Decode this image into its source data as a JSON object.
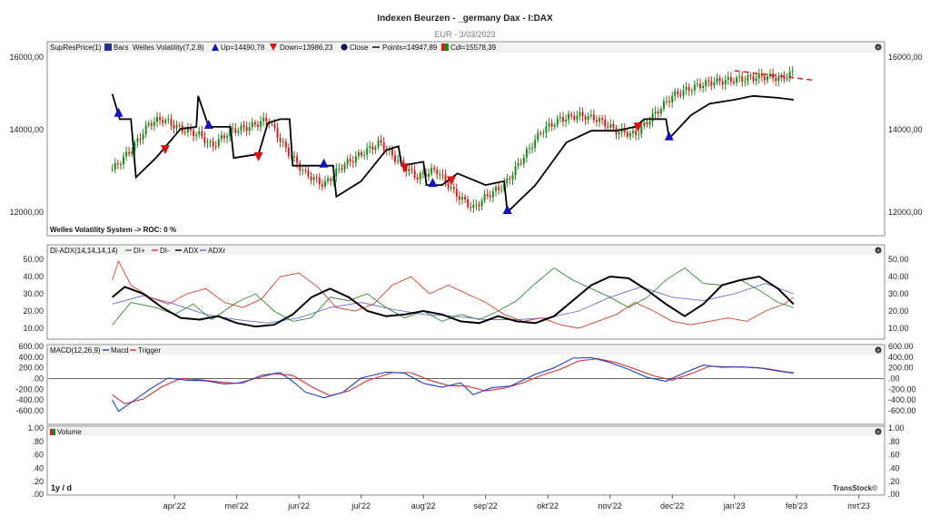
{
  "header": {
    "title": "Indexen Beurzen - _germany Dax - I:DAX",
    "subtitle": "EUR - 3/03/2023"
  },
  "panels": {
    "price": {
      "legend": [
        "SupResPrice(1)",
        "Bars",
        "Welles Volatility(7,2.8)",
        "Up=14490,78",
        "Down=13986,23",
        "Close",
        "Points=14947,89",
        "Cdl=15578,39"
      ],
      "note": "Welles Volatility System -> ROC: 0 %",
      "yticks": [
        "16000,00",
        "14000,00",
        "12000,00"
      ]
    },
    "adx": {
      "legend": [
        "DI-ADX(14,14,14,14)",
        "DI+",
        "DI-",
        "ADX",
        "ADXr"
      ],
      "yticks": [
        "50.00",
        "40.00",
        "30.00",
        "20.00",
        "10.00"
      ]
    },
    "macd": {
      "legend": [
        "MACD(12,26,9)",
        "Macd",
        "Trigger"
      ],
      "yticks": [
        "600.00",
        "400.00",
        "200.00",
        ".00",
        "-200.00",
        "-400.00",
        "-600.00"
      ]
    },
    "volume": {
      "legend": [
        "Volume"
      ],
      "yticks": [
        "1.00",
        ".80",
        ".60",
        ".40",
        ".20",
        ".00"
      ],
      "period": "1y / d",
      "brand": "TransStock©"
    }
  },
  "colors": {
    "up_bar": "#1a8a1a",
    "down_bar": "#d42020",
    "volatility_line": "#000000",
    "up_marker": "#1010c0",
    "down_marker": "#dd1010",
    "di_plus": "#2e8b2e",
    "di_minus": "#e03a2a",
    "adx": "#000000",
    "adxr": "#6a6ae0",
    "macd": "#2040d0",
    "trigger": "#e03030",
    "trend_dash": "#e02020"
  },
  "chart_data": {
    "type": "line",
    "x_months": [
      "apr'22",
      "mei'22",
      "jun'22",
      "jul'22",
      "aug'22",
      "sep'22",
      "okt'22",
      "nov'22",
      "dec'22",
      "jan'23",
      "feb'23",
      "mrt'23"
    ],
    "price_close": [
      {
        "m": 0.0,
        "v": 13100
      },
      {
        "m": 0.3,
        "v": 13600
      },
      {
        "m": 0.6,
        "v": 14300
      },
      {
        "m": 0.8,
        "v": 14400
      },
      {
        "m": 1.1,
        "v": 14150
      },
      {
        "m": 1.4,
        "v": 14000
      },
      {
        "m": 1.6,
        "v": 13700
      },
      {
        "m": 1.9,
        "v": 14100
      },
      {
        "m": 2.2,
        "v": 14200
      },
      {
        "m": 2.5,
        "v": 14400
      },
      {
        "m": 2.8,
        "v": 13600
      },
      {
        "m": 3.1,
        "v": 13000
      },
      {
        "m": 3.4,
        "v": 12700
      },
      {
        "m": 3.7,
        "v": 13200
      },
      {
        "m": 4.0,
        "v": 13500
      },
      {
        "m": 4.3,
        "v": 13800
      },
      {
        "m": 4.6,
        "v": 13300
      },
      {
        "m": 4.9,
        "v": 12900
      },
      {
        "m": 5.2,
        "v": 13100
      },
      {
        "m": 5.5,
        "v": 12500
      },
      {
        "m": 5.8,
        "v": 12100
      },
      {
        "m": 6.0,
        "v": 12400
      },
      {
        "m": 6.3,
        "v": 12700
      },
      {
        "m": 6.6,
        "v": 13400
      },
      {
        "m": 6.9,
        "v": 14100
      },
      {
        "m": 7.2,
        "v": 14400
      },
      {
        "m": 7.5,
        "v": 14500
      },
      {
        "m": 7.8,
        "v": 14400
      },
      {
        "m": 8.1,
        "v": 14100
      },
      {
        "m": 8.4,
        "v": 14000
      },
      {
        "m": 8.7,
        "v": 14500
      },
      {
        "m": 9.0,
        "v": 15000
      },
      {
        "m": 9.3,
        "v": 15200
      },
      {
        "m": 9.6,
        "v": 15350
      },
      {
        "m": 9.9,
        "v": 15400
      },
      {
        "m": 10.2,
        "v": 15450
      },
      {
        "m": 10.5,
        "v": 15500
      },
      {
        "m": 10.75,
        "v": 15450
      },
      {
        "m": 10.95,
        "v": 15600
      }
    ],
    "welles_volatility": [
      {
        "m": 0.0,
        "v": 15050
      },
      {
        "m": 0.12,
        "v": 14400
      },
      {
        "m": 0.3,
        "v": 14400
      },
      {
        "m": 0.38,
        "v": 12900
      },
      {
        "m": 0.7,
        "v": 13400
      },
      {
        "m": 1.1,
        "v": 14150
      },
      {
        "m": 1.35,
        "v": 14200
      },
      {
        "m": 1.38,
        "v": 15000
      },
      {
        "m": 1.55,
        "v": 14200
      },
      {
        "m": 1.9,
        "v": 14200
      },
      {
        "m": 1.95,
        "v": 13400
      },
      {
        "m": 2.35,
        "v": 13500
      },
      {
        "m": 2.5,
        "v": 14300
      },
      {
        "m": 2.7,
        "v": 14400
      },
      {
        "m": 2.85,
        "v": 14400
      },
      {
        "m": 2.9,
        "v": 13200
      },
      {
        "m": 3.4,
        "v": 13200
      },
      {
        "m": 3.55,
        "v": 13200
      },
      {
        "m": 3.6,
        "v": 12400
      },
      {
        "m": 4.0,
        "v": 12800
      },
      {
        "m": 4.4,
        "v": 13600
      },
      {
        "m": 4.6,
        "v": 13700
      },
      {
        "m": 4.65,
        "v": 13200
      },
      {
        "m": 5.0,
        "v": 13300
      },
      {
        "m": 5.05,
        "v": 12700
      },
      {
        "m": 5.3,
        "v": 12700
      },
      {
        "m": 5.55,
        "v": 13000
      },
      {
        "m": 6.0,
        "v": 12700
      },
      {
        "m": 6.3,
        "v": 12800
      },
      {
        "m": 6.35,
        "v": 12000
      },
      {
        "m": 6.8,
        "v": 12700
      },
      {
        "m": 7.3,
        "v": 13800
      },
      {
        "m": 7.7,
        "v": 14100
      },
      {
        "m": 8.1,
        "v": 14100
      },
      {
        "m": 8.4,
        "v": 14200
      },
      {
        "m": 8.55,
        "v": 14400
      },
      {
        "m": 8.9,
        "v": 14400
      },
      {
        "m": 8.95,
        "v": 13900
      },
      {
        "m": 9.3,
        "v": 14500
      },
      {
        "m": 9.6,
        "v": 14800
      },
      {
        "m": 10.0,
        "v": 14900
      },
      {
        "m": 10.3,
        "v": 15000
      },
      {
        "m": 10.7,
        "v": 14950
      },
      {
        "m": 10.95,
        "v": 14900
      }
    ],
    "up_markers": [
      0.1,
      1.55,
      3.4,
      5.15,
      6.35,
      8.95
    ],
    "down_markers": [
      0.85,
      2.35,
      4.7,
      5.45,
      8.45
    ],
    "trend_line": {
      "from": {
        "m": 10.0,
        "v": 15650
      },
      "to": {
        "m": 11.3,
        "v": 15400
      }
    },
    "di_plus": [
      {
        "m": 0.0,
        "v": 12
      },
      {
        "m": 0.3,
        "v": 25
      },
      {
        "m": 0.7,
        "v": 22
      },
      {
        "m": 1.0,
        "v": 18
      },
      {
        "m": 1.3,
        "v": 24
      },
      {
        "m": 1.6,
        "v": 15
      },
      {
        "m": 2.0,
        "v": 25
      },
      {
        "m": 2.3,
        "v": 30
      },
      {
        "m": 2.6,
        "v": 20
      },
      {
        "m": 2.9,
        "v": 14
      },
      {
        "m": 3.2,
        "v": 16
      },
      {
        "m": 3.5,
        "v": 28
      },
      {
        "m": 3.8,
        "v": 26
      },
      {
        "m": 4.1,
        "v": 30
      },
      {
        "m": 4.4,
        "v": 22
      },
      {
        "m": 4.7,
        "v": 16
      },
      {
        "m": 5.0,
        "v": 20
      },
      {
        "m": 5.3,
        "v": 14
      },
      {
        "m": 5.6,
        "v": 18
      },
      {
        "m": 5.9,
        "v": 15
      },
      {
        "m": 6.2,
        "v": 20
      },
      {
        "m": 6.5,
        "v": 26
      },
      {
        "m": 6.8,
        "v": 36
      },
      {
        "m": 7.1,
        "v": 45
      },
      {
        "m": 7.4,
        "v": 38
      },
      {
        "m": 7.7,
        "v": 33
      },
      {
        "m": 8.0,
        "v": 28
      },
      {
        "m": 8.3,
        "v": 22
      },
      {
        "m": 8.6,
        "v": 28
      },
      {
        "m": 8.9,
        "v": 38
      },
      {
        "m": 9.2,
        "v": 45
      },
      {
        "m": 9.5,
        "v": 36
      },
      {
        "m": 9.8,
        "v": 35
      },
      {
        "m": 10.1,
        "v": 38
      },
      {
        "m": 10.4,
        "v": 32
      },
      {
        "m": 10.7,
        "v": 25
      },
      {
        "m": 10.95,
        "v": 22
      }
    ],
    "di_minus": [
      {
        "m": 0.0,
        "v": 38
      },
      {
        "m": 0.1,
        "v": 49
      },
      {
        "m": 0.3,
        "v": 35
      },
      {
        "m": 0.6,
        "v": 28
      },
      {
        "m": 0.9,
        "v": 24
      },
      {
        "m": 1.2,
        "v": 30
      },
      {
        "m": 1.5,
        "v": 33
      },
      {
        "m": 1.8,
        "v": 25
      },
      {
        "m": 2.1,
        "v": 22
      },
      {
        "m": 2.4,
        "v": 27
      },
      {
        "m": 2.7,
        "v": 40
      },
      {
        "m": 3.0,
        "v": 42
      },
      {
        "m": 3.3,
        "v": 34
      },
      {
        "m": 3.6,
        "v": 22
      },
      {
        "m": 3.9,
        "v": 20
      },
      {
        "m": 4.2,
        "v": 24
      },
      {
        "m": 4.5,
        "v": 35
      },
      {
        "m": 4.8,
        "v": 40
      },
      {
        "m": 5.1,
        "v": 30
      },
      {
        "m": 5.4,
        "v": 35
      },
      {
        "m": 5.7,
        "v": 30
      },
      {
        "m": 6.0,
        "v": 25
      },
      {
        "m": 6.3,
        "v": 18
      },
      {
        "m": 6.6,
        "v": 14
      },
      {
        "m": 6.9,
        "v": 16
      },
      {
        "m": 7.2,
        "v": 12
      },
      {
        "m": 7.5,
        "v": 10
      },
      {
        "m": 7.8,
        "v": 14
      },
      {
        "m": 8.1,
        "v": 18
      },
      {
        "m": 8.4,
        "v": 25
      },
      {
        "m": 8.7,
        "v": 20
      },
      {
        "m": 9.0,
        "v": 14
      },
      {
        "m": 9.3,
        "v": 12
      },
      {
        "m": 9.6,
        "v": 14
      },
      {
        "m": 9.9,
        "v": 16
      },
      {
        "m": 10.2,
        "v": 14
      },
      {
        "m": 10.5,
        "v": 20
      },
      {
        "m": 10.8,
        "v": 24
      },
      {
        "m": 10.95,
        "v": 28
      }
    ],
    "adx": [
      {
        "m": 0.0,
        "v": 28
      },
      {
        "m": 0.2,
        "v": 34
      },
      {
        "m": 0.5,
        "v": 30
      },
      {
        "m": 0.8,
        "v": 22
      },
      {
        "m": 1.1,
        "v": 16
      },
      {
        "m": 1.4,
        "v": 15
      },
      {
        "m": 1.7,
        "v": 17
      },
      {
        "m": 2.0,
        "v": 13
      },
      {
        "m": 2.3,
        "v": 11
      },
      {
        "m": 2.6,
        "v": 12
      },
      {
        "m": 2.9,
        "v": 18
      },
      {
        "m": 3.2,
        "v": 28
      },
      {
        "m": 3.5,
        "v": 33
      },
      {
        "m": 3.8,
        "v": 28
      },
      {
        "m": 4.1,
        "v": 20
      },
      {
        "m": 4.4,
        "v": 17
      },
      {
        "m": 4.7,
        "v": 18
      },
      {
        "m": 5.0,
        "v": 20
      },
      {
        "m": 5.3,
        "v": 18
      },
      {
        "m": 5.6,
        "v": 14
      },
      {
        "m": 5.9,
        "v": 13
      },
      {
        "m": 6.2,
        "v": 17
      },
      {
        "m": 6.5,
        "v": 14
      },
      {
        "m": 6.8,
        "v": 13
      },
      {
        "m": 7.1,
        "v": 17
      },
      {
        "m": 7.4,
        "v": 26
      },
      {
        "m": 7.7,
        "v": 35
      },
      {
        "m": 8.0,
        "v": 40
      },
      {
        "m": 8.3,
        "v": 39
      },
      {
        "m": 8.6,
        "v": 32
      },
      {
        "m": 8.9,
        "v": 24
      },
      {
        "m": 9.2,
        "v": 17
      },
      {
        "m": 9.5,
        "v": 24
      },
      {
        "m": 9.8,
        "v": 35
      },
      {
        "m": 10.1,
        "v": 38
      },
      {
        "m": 10.4,
        "v": 40
      },
      {
        "m": 10.7,
        "v": 33
      },
      {
        "m": 10.95,
        "v": 24
      }
    ],
    "adxr": [
      {
        "m": 0.0,
        "v": 24
      },
      {
        "m": 0.5,
        "v": 29
      },
      {
        "m": 1.0,
        "v": 24
      },
      {
        "m": 1.5,
        "v": 18
      },
      {
        "m": 2.0,
        "v": 15
      },
      {
        "m": 2.5,
        "v": 13
      },
      {
        "m": 3.0,
        "v": 16
      },
      {
        "m": 3.5,
        "v": 22
      },
      {
        "m": 4.0,
        "v": 25
      },
      {
        "m": 4.5,
        "v": 21
      },
      {
        "m": 5.0,
        "v": 18
      },
      {
        "m": 5.5,
        "v": 17
      },
      {
        "m": 6.0,
        "v": 15
      },
      {
        "m": 6.5,
        "v": 15
      },
      {
        "m": 7.0,
        "v": 16
      },
      {
        "m": 7.5,
        "v": 20
      },
      {
        "m": 8.0,
        "v": 28
      },
      {
        "m": 8.5,
        "v": 34
      },
      {
        "m": 9.0,
        "v": 28
      },
      {
        "m": 9.5,
        "v": 26
      },
      {
        "m": 10.0,
        "v": 30
      },
      {
        "m": 10.5,
        "v": 36
      },
      {
        "m": 10.95,
        "v": 30
      }
    ],
    "macd": [
      {
        "m": 0.0,
        "v": -400
      },
      {
        "m": 0.1,
        "v": -610
      },
      {
        "m": 0.3,
        "v": -450
      },
      {
        "m": 0.6,
        "v": -200
      },
      {
        "m": 0.9,
        "v": 10
      },
      {
        "m": 1.2,
        "v": -30
      },
      {
        "m": 1.5,
        "v": -40
      },
      {
        "m": 1.8,
        "v": -100
      },
      {
        "m": 2.1,
        "v": -80
      },
      {
        "m": 2.4,
        "v": 60
      },
      {
        "m": 2.7,
        "v": 110
      },
      {
        "m": 2.9,
        "v": -50
      },
      {
        "m": 3.1,
        "v": -250
      },
      {
        "m": 3.4,
        "v": -360
      },
      {
        "m": 3.7,
        "v": -260
      },
      {
        "m": 4.0,
        "v": 10
      },
      {
        "m": 4.4,
        "v": 120
      },
      {
        "m": 4.7,
        "v": 100
      },
      {
        "m": 5.0,
        "v": -90
      },
      {
        "m": 5.3,
        "v": -160
      },
      {
        "m": 5.6,
        "v": -80
      },
      {
        "m": 5.8,
        "v": -300
      },
      {
        "m": 6.1,
        "v": -170
      },
      {
        "m": 6.4,
        "v": -140
      },
      {
        "m": 6.8,
        "v": 80
      },
      {
        "m": 7.1,
        "v": 200
      },
      {
        "m": 7.4,
        "v": 380
      },
      {
        "m": 7.7,
        "v": 390
      },
      {
        "m": 8.0,
        "v": 300
      },
      {
        "m": 8.3,
        "v": 170
      },
      {
        "m": 8.6,
        "v": 20
      },
      {
        "m": 8.9,
        "v": -50
      },
      {
        "m": 9.2,
        "v": 110
      },
      {
        "m": 9.5,
        "v": 250
      },
      {
        "m": 9.8,
        "v": 210
      },
      {
        "m": 10.1,
        "v": 220
      },
      {
        "m": 10.4,
        "v": 200
      },
      {
        "m": 10.7,
        "v": 140
      },
      {
        "m": 10.95,
        "v": 100
      }
    ],
    "trigger": [
      {
        "m": 0.0,
        "v": -300
      },
      {
        "m": 0.2,
        "v": -470
      },
      {
        "m": 0.5,
        "v": -380
      },
      {
        "m": 0.8,
        "v": -150
      },
      {
        "m": 1.1,
        "v": 0
      },
      {
        "m": 1.4,
        "v": -20
      },
      {
        "m": 1.7,
        "v": -60
      },
      {
        "m": 2.0,
        "v": -90
      },
      {
        "m": 2.3,
        "v": 0
      },
      {
        "m": 2.6,
        "v": 90
      },
      {
        "m": 2.9,
        "v": 60
      },
      {
        "m": 3.2,
        "v": -150
      },
      {
        "m": 3.5,
        "v": -320
      },
      {
        "m": 3.8,
        "v": -230
      },
      {
        "m": 4.1,
        "v": -40
      },
      {
        "m": 4.5,
        "v": 110
      },
      {
        "m": 4.8,
        "v": 110
      },
      {
        "m": 5.1,
        "v": -30
      },
      {
        "m": 5.4,
        "v": -130
      },
      {
        "m": 5.7,
        "v": -140
      },
      {
        "m": 6.0,
        "v": -230
      },
      {
        "m": 6.3,
        "v": -180
      },
      {
        "m": 6.6,
        "v": -80
      },
      {
        "m": 6.9,
        "v": 60
      },
      {
        "m": 7.2,
        "v": 170
      },
      {
        "m": 7.5,
        "v": 330
      },
      {
        "m": 7.8,
        "v": 370
      },
      {
        "m": 8.1,
        "v": 300
      },
      {
        "m": 8.4,
        "v": 180
      },
      {
        "m": 8.7,
        "v": 50
      },
      {
        "m": 9.0,
        "v": -30
      },
      {
        "m": 9.3,
        "v": 90
      },
      {
        "m": 9.6,
        "v": 230
      },
      {
        "m": 9.9,
        "v": 220
      },
      {
        "m": 10.2,
        "v": 210
      },
      {
        "m": 10.5,
        "v": 190
      },
      {
        "m": 10.8,
        "v": 130
      },
      {
        "m": 10.95,
        "v": 110
      }
    ],
    "price_ylim": [
      11800,
      16200
    ],
    "adx_ylim": [
      5,
      55
    ],
    "macd_ylim": [
      -700,
      600
    ],
    "volume_ylim": [
      0,
      1
    ]
  }
}
